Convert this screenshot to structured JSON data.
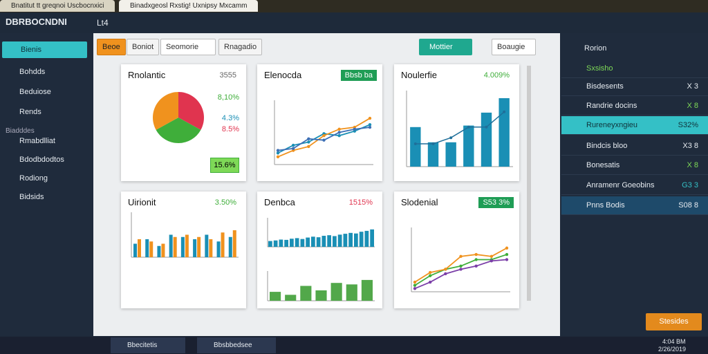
{
  "browser": {
    "tabs": [
      "Bnatitut tt greqnoi Uscbocnxici",
      "Binadxgeosl Rxstig! Uxnipsy Mxcamm"
    ]
  },
  "app": {
    "logo": "DBRBOCNDNI",
    "breadcrumb": "Lt4"
  },
  "sidebar": {
    "items": [
      "Bienis",
      "Bohdds",
      "Beduiose",
      "Rends"
    ],
    "section": "Biadddes",
    "items2": [
      "Rmabdlliat",
      "Bdodbdodtos",
      "Rodiong",
      "Bidsids"
    ]
  },
  "toolbar": {
    "buttons": [
      "Beoe",
      "Boniot"
    ],
    "select": "Seomorie",
    "filter": "Rnagadio",
    "apply": "Mottier",
    "view": "Boaugie"
  },
  "cards": [
    {
      "title": "Rnolantic",
      "badge": "3555",
      "badge_color": "#666",
      "badge_filled": false,
      "type": "pie",
      "values": [
        33,
        34,
        33
      ],
      "colors": [
        "#e0344f",
        "#3fae3a",
        "#f0921e"
      ],
      "stats": [
        "8,10%",
        "4.3%",
        "8.5%"
      ],
      "stat_colors": [
        "#3fae3a",
        "#1a8fb5",
        "#e0344f"
      ],
      "highlight": "15.6%"
    },
    {
      "title": "Elenocda",
      "badge": "Bbsb ba",
      "badge_color": "#1f9d55",
      "badge_filled": true,
      "type": "line",
      "ylim": [
        0,
        100
      ],
      "series": [
        {
          "color": "#1a8fb5",
          "values": [
            18,
            30,
            35,
            48,
            45,
            52,
            62
          ]
        },
        {
          "color": "#f0921e",
          "values": [
            12,
            22,
            28,
            45,
            55,
            58,
            72
          ]
        },
        {
          "color": "#3d6fb5",
          "values": [
            22,
            25,
            40,
            38,
            50,
            55,
            58
          ]
        }
      ]
    },
    {
      "title": "Noulerfie",
      "badge": "4.009%",
      "badge_color": "#3fae3a",
      "badge_filled": false,
      "type": "bar",
      "ylim": [
        0,
        100
      ],
      "values": [
        52,
        32,
        32,
        54,
        71,
        90
      ],
      "color": "#1a8fb5",
      "line": [
        30,
        30,
        38,
        52,
        52,
        72
      ],
      "line_color": "#1f6f9a"
    },
    {
      "title": "Uirionit",
      "badge": "3.50%",
      "badge_color": "#3fae3a",
      "badge_filled": false,
      "type": "bargroup",
      "ylim": [
        0,
        100
      ],
      "series": [
        {
          "color": "#1a8fb5",
          "values": [
            30,
            40,
            25,
            50,
            45,
            40,
            50,
            35,
            45
          ]
        },
        {
          "color": "#f0921e",
          "values": [
            40,
            35,
            30,
            45,
            50,
            45,
            40,
            55,
            60
          ]
        }
      ]
    },
    {
      "title": "Denbca",
      "badge": "1515%",
      "badge_color": "#e0344f",
      "badge_filled": false,
      "type": "bar2",
      "ylim": [
        0,
        100
      ],
      "values": [
        20,
        22,
        25,
        24,
        28,
        30,
        27,
        32,
        35,
        33,
        38,
        40,
        37,
        42,
        45,
        48,
        46,
        52,
        55,
        60
      ],
      "color": "#1a8fb5",
      "values2": [
        30,
        20,
        50,
        35,
        60,
        55,
        70
      ],
      "color2": "#52a84a"
    },
    {
      "title": "Slodenial",
      "badge": "S53 3%",
      "badge_color": "#1f9d55",
      "badge_filled": true,
      "type": "line",
      "ylim": [
        0,
        100
      ],
      "series": [
        {
          "color": "#3fae3a",
          "values": [
            10,
            25,
            35,
            40,
            50,
            50,
            58
          ]
        },
        {
          "color": "#f0921e",
          "values": [
            15,
            30,
            35,
            55,
            58,
            55,
            68
          ]
        },
        {
          "color": "#7b3fa8",
          "values": [
            5,
            15,
            28,
            35,
            40,
            48,
            50
          ]
        }
      ]
    }
  ],
  "panel": {
    "title": "Rorion",
    "items": [
      {
        "label": "Sxsisho"
      },
      {
        "label": "Bisdesents",
        "value": "X 3"
      },
      {
        "label": "Randrie docins",
        "value": "X 8"
      },
      {
        "label": "Rureneyxngieu",
        "value": "S32%"
      },
      {
        "label": "Bindcis bloo",
        "value": "X3 8"
      },
      {
        "label": "Bonesatis",
        "value": "X 8"
      },
      {
        "label": "Anramenr Goeobins",
        "value": "G3 3"
      },
      {
        "label": "Pnns Bodis",
        "value": "S08 8"
      }
    ]
  },
  "footer_button": "Stesides",
  "taskbar": {
    "apps": [
      "Bbecitetis",
      "Bbsbbedsee"
    ],
    "time": "4:04 BM",
    "date": "2/26/2019"
  }
}
